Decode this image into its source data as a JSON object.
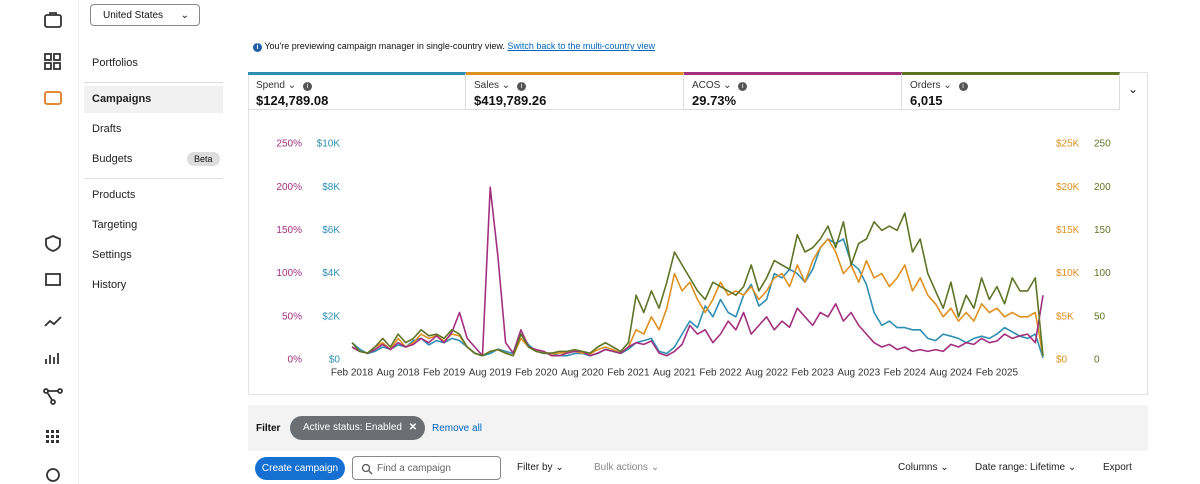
{
  "country_select": "United States",
  "nav": [
    "Portfolios",
    "Campaigns",
    "Drafts",
    "Budgets",
    "Products",
    "Targeting",
    "Settings",
    "History"
  ],
  "nav_badge": "Beta",
  "banner": {
    "text": "You're previewing campaign manager in single-country view.",
    "link": "Switch back to the multi-country view"
  },
  "metric_totals": [
    "$124,789.08",
    "$419,789.26",
    "29.73%",
    "6,015"
  ],
  "filter": {
    "label": "Filter",
    "chip": "Active status: Enabled",
    "remove": "Remove all"
  },
  "toolbar": {
    "create": "Create campaign",
    "search": "Find a campaign",
    "filter_by": "Filter by",
    "bulk": "Bulk actions",
    "columns": "Columns",
    "date_range": "Date range: Lifetime",
    "export": "Export"
  },
  "chart_data": {
    "type": "line",
    "categories": [
      "Feb 2018",
      null,
      null,
      null,
      null,
      null,
      "Aug 2018",
      null,
      null,
      null,
      null,
      null,
      "Feb 2019",
      null,
      null,
      null,
      null,
      null,
      "Aug 2019",
      null,
      null,
      null,
      null,
      null,
      "Feb 2020",
      null,
      null,
      null,
      null,
      null,
      "Aug 2020",
      null,
      null,
      null,
      null,
      null,
      "Feb 2021",
      null,
      null,
      null,
      null,
      null,
      "Aug 2021",
      null,
      null,
      null,
      null,
      null,
      "Feb 2022",
      null,
      null,
      null,
      null,
      null,
      "Aug 2022",
      null,
      null,
      null,
      null,
      null,
      "Feb 2023",
      null,
      null,
      null,
      null,
      null,
      "Aug 2023",
      null,
      null,
      null,
      null,
      null,
      "Feb 2024",
      null,
      null,
      null,
      null,
      null,
      "Aug 2024",
      null,
      null,
      null,
      null,
      null,
      "Feb 2025",
      null,
      null,
      null,
      null,
      null,
      null
    ],
    "ylim": [
      0,
      10000
    ],
    "yticks": [
      {
        "value": 0,
        "label": "$0"
      },
      {
        "value": 2000,
        "label": "$2K"
      },
      {
        "value": 4000,
        "label": "$4K"
      },
      {
        "value": 6000,
        "label": "$6K"
      },
      {
        "value": 8000,
        "label": "$8K"
      },
      {
        "value": 10000,
        "label": "$10K"
      }
    ],
    "y2lim": [
      0,
      25000
    ],
    "y2ticks": [
      {
        "value": 0,
        "label": "$0"
      },
      {
        "value": 5000,
        "label": "$5K"
      },
      {
        "value": 10000,
        "label": "$10K"
      },
      {
        "value": 15000,
        "label": "$15K"
      },
      {
        "value": 20000,
        "label": "$20K"
      },
      {
        "value": 25000,
        "label": "$25K"
      }
    ],
    "y3lim": [
      0,
      250
    ],
    "y3ticks": [
      {
        "value": 0,
        "label": "0%"
      },
      {
        "value": 50,
        "label": "50%"
      },
      {
        "value": 100,
        "label": "100%"
      },
      {
        "value": 150,
        "label": "150%"
      },
      {
        "value": 200,
        "label": "200%"
      },
      {
        "value": 250,
        "label": "250%"
      }
    ],
    "y4lim": [
      0,
      250
    ],
    "y4ticks": [
      0,
      50,
      100,
      150,
      200,
      250
    ],
    "series": [
      {
        "name": "Spend",
        "color": "#2f8fb3",
        "axis": "y",
        "values": [
          800,
          500,
          300,
          400,
          600,
          500,
          700,
          600,
          900,
          1000,
          700,
          900,
          800,
          1000,
          900,
          600,
          300,
          200,
          300,
          500,
          400,
          300,
          1200,
          700,
          400,
          300,
          300,
          200,
          200,
          300,
          300,
          200,
          300,
          500,
          400,
          300,
          500,
          800,
          900,
          1000,
          400,
          300,
          600,
          1200,
          1800,
          1500,
          2500,
          2000,
          2800,
          2200,
          2000,
          3000,
          3500,
          2500,
          2800,
          4000,
          3800,
          4200,
          4000,
          3600,
          4200,
          5200,
          5600,
          5400,
          5600,
          4500,
          4200,
          3500,
          2200,
          1600,
          1800,
          1500,
          1500,
          1400,
          1400,
          1000,
          900,
          1200,
          1100,
          1000,
          800,
          1000,
          1100,
          1000,
          1200,
          1500,
          1300,
          1100,
          1000,
          1200,
          100
        ]
      },
      {
        "name": "Sales",
        "color": "#e0901f",
        "axis": "y2",
        "values": [
          1500,
          1000,
          800,
          1500,
          2000,
          1200,
          2500,
          1500,
          2000,
          3000,
          2500,
          2800,
          2200,
          3000,
          2800,
          1500,
          800,
          500,
          1000,
          1200,
          800,
          500,
          2500,
          1500,
          1000,
          800,
          700,
          800,
          900,
          1000,
          800,
          700,
          1200,
          1500,
          1200,
          800,
          1500,
          3500,
          3000,
          5000,
          3500,
          6000,
          10000,
          8000,
          9000,
          7000,
          5500,
          7000,
          9000,
          7500,
          8000,
          7500,
          8500,
          7000,
          8000,
          9500,
          10000,
          8500,
          11000,
          9000,
          11500,
          13000,
          14000,
          12500,
          10000,
          11000,
          9000,
          11500,
          9500,
          10000,
          8500,
          9500,
          11000,
          8000,
          9500,
          7500,
          6500,
          5000,
          6000,
          4500,
          5500,
          4500,
          6500,
          5500,
          6000,
          5000,
          5500,
          5000,
          5000,
          5500,
          500
        ]
      },
      {
        "name": "ACOS",
        "color": "#a3307f",
        "axis": "y3",
        "values": [
          15,
          10,
          8,
          12,
          18,
          12,
          20,
          15,
          18,
          25,
          20,
          28,
          20,
          32,
          55,
          25,
          15,
          5,
          200,
          120,
          20,
          8,
          35,
          15,
          12,
          10,
          5,
          5,
          8,
          10,
          10,
          5,
          8,
          12,
          10,
          8,
          15,
          20,
          18,
          22,
          8,
          5,
          10,
          18,
          40,
          30,
          35,
          20,
          30,
          45,
          35,
          55,
          30,
          40,
          50,
          35,
          45,
          38,
          60,
          50,
          40,
          55,
          50,
          65,
          45,
          55,
          40,
          30,
          20,
          15,
          18,
          12,
          15,
          10,
          12,
          10,
          12,
          10,
          18,
          15,
          20,
          18,
          25,
          20,
          22,
          30,
          25,
          28,
          30,
          20,
          75
        ]
      },
      {
        "name": "Orders",
        "color": "#5e7425",
        "axis": "y4",
        "values": [
          20,
          10,
          8,
          15,
          25,
          15,
          30,
          20,
          25,
          35,
          28,
          30,
          25,
          35,
          30,
          15,
          8,
          5,
          10,
          12,
          8,
          5,
          30,
          15,
          10,
          8,
          8,
          10,
          10,
          12,
          10,
          8,
          15,
          20,
          15,
          10,
          20,
          75,
          55,
          80,
          60,
          90,
          125,
          110,
          95,
          80,
          70,
          90,
          85,
          80,
          75,
          85,
          110,
          80,
          95,
          115,
          110,
          105,
          145,
          125,
          130,
          140,
          155,
          130,
          160,
          110,
          135,
          140,
          160,
          150,
          155,
          150,
          170,
          125,
          140,
          100,
          80,
          60,
          90,
          50,
          75,
          60,
          95,
          70,
          85,
          65,
          95,
          80,
          80,
          95,
          5
        ]
      }
    ]
  }
}
